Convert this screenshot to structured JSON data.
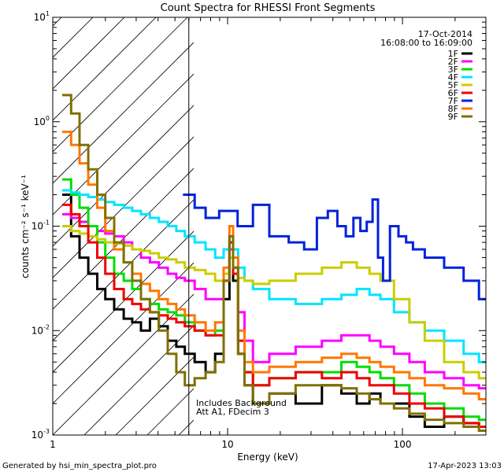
{
  "chart_data": {
    "type": "line",
    "title": "Count Spectra for RHESSI Front Segments",
    "xlabel": "Energy (keV)",
    "ylabel": "counts cm⁻² s⁻¹ keV⁻¹",
    "x_scale": "log",
    "y_scale": "log",
    "xlim": [
      1,
      300
    ],
    "ylim": [
      0.001,
      10
    ],
    "x_ticks": [
      {
        "v": 1,
        "label": "1"
      },
      {
        "v": 10,
        "label": "10"
      },
      {
        "v": 100,
        "label": "100"
      }
    ],
    "y_ticks": [
      {
        "v": 0.001,
        "base": "10",
        "exp": "-3"
      },
      {
        "v": 0.01,
        "base": "10",
        "exp": "-2"
      },
      {
        "v": 0.1,
        "base": "10",
        "exp": "-1"
      },
      {
        "v": 1,
        "base": "10",
        "exp": "0"
      },
      {
        "v": 10,
        "base": "10",
        "exp": "1"
      }
    ],
    "excluded_region_keV": [
      1,
      6
    ],
    "date": "17-Oct-2014",
    "time_range": "16:08:00 to 16:09:00",
    "notes": [
      "Includes Background",
      "Att A1, FDecim 3"
    ],
    "series": [
      {
        "name": "1F",
        "color": "#000000",
        "x": [
          1.2,
          1.35,
          1.5,
          1.7,
          1.9,
          2.1,
          2.4,
          2.7,
          3.0,
          3.4,
          3.8,
          4.3,
          4.8,
          5.4,
          6.0,
          7,
          8,
          9,
          10,
          10.5,
          11,
          12,
          13,
          15,
          20,
          30,
          40,
          50,
          60,
          70,
          80,
          100,
          120,
          150,
          200,
          250,
          300
        ],
        "y": [
          0.2,
          0.08,
          0.05,
          0.035,
          0.025,
          0.02,
          0.016,
          0.013,
          0.012,
          0.01,
          0.013,
          0.011,
          0.008,
          0.007,
          0.006,
          0.005,
          0.004,
          0.006,
          0.02,
          0.05,
          0.03,
          0.006,
          0.003,
          0.002,
          0.0025,
          0.002,
          0.003,
          0.0025,
          0.002,
          0.0025,
          0.002,
          0.002,
          0.0015,
          0.0012,
          0.0015,
          0.0013,
          0.0012
        ]
      },
      {
        "name": "2F",
        "color": "#ff00ff",
        "x": [
          1.2,
          1.35,
          1.5,
          1.7,
          1.9,
          2.1,
          2.4,
          2.7,
          3.0,
          3.4,
          3.8,
          4.3,
          4.8,
          5.4,
          6.0,
          7,
          8,
          9,
          10,
          10.5,
          11,
          12,
          13,
          15,
          20,
          30,
          40,
          50,
          60,
          70,
          80,
          100,
          120,
          150,
          200,
          250,
          300
        ],
        "y": [
          0.13,
          0.12,
          0.11,
          0.1,
          0.09,
          0.085,
          0.08,
          0.07,
          0.06,
          0.05,
          0.045,
          0.04,
          0.035,
          0.032,
          0.03,
          0.025,
          0.02,
          0.02,
          0.035,
          0.06,
          0.04,
          0.015,
          0.008,
          0.005,
          0.006,
          0.007,
          0.008,
          0.009,
          0.009,
          0.008,
          0.007,
          0.006,
          0.005,
          0.004,
          0.0035,
          0.003,
          0.0028
        ]
      },
      {
        "name": "3F",
        "color": "#00dd00",
        "x": [
          1.2,
          1.35,
          1.5,
          1.7,
          1.9,
          2.1,
          2.4,
          2.7,
          3.0,
          3.4,
          3.8,
          4.3,
          4.8,
          5.4,
          6.0,
          7,
          8,
          9,
          10,
          10.5,
          11,
          12,
          13,
          15,
          20,
          30,
          40,
          50,
          60,
          70,
          80,
          100,
          120,
          150,
          200,
          250,
          300
        ],
        "y": [
          0.28,
          0.2,
          0.15,
          0.1,
          0.07,
          0.05,
          0.035,
          0.03,
          0.025,
          0.02,
          0.018,
          0.016,
          0.015,
          0.014,
          0.012,
          0.01,
          0.009,
          0.01,
          0.03,
          0.07,
          0.04,
          0.008,
          0.004,
          0.003,
          0.0035,
          0.004,
          0.004,
          0.005,
          0.0045,
          0.004,
          0.0035,
          0.003,
          0.0025,
          0.002,
          0.0018,
          0.0015,
          0.0014
        ]
      },
      {
        "name": "4F",
        "color": "#00e5ff",
        "x": [
          1.2,
          1.35,
          1.5,
          1.7,
          1.9,
          2.1,
          2.4,
          2.7,
          3.0,
          3.4,
          3.8,
          4.3,
          4.8,
          5.4,
          6.0,
          7,
          8,
          9,
          10,
          10.5,
          11,
          12,
          13,
          15,
          20,
          30,
          40,
          50,
          60,
          70,
          80,
          100,
          120,
          150,
          200,
          250,
          300
        ],
        "y": [
          0.22,
          0.21,
          0.2,
          0.19,
          0.18,
          0.17,
          0.16,
          0.15,
          0.14,
          0.13,
          0.12,
          0.11,
          0.1,
          0.09,
          0.08,
          0.07,
          0.06,
          0.05,
          0.06,
          0.08,
          0.06,
          0.04,
          0.03,
          0.025,
          0.02,
          0.018,
          0.02,
          0.022,
          0.025,
          0.022,
          0.02,
          0.015,
          0.012,
          0.01,
          0.008,
          0.006,
          0.005
        ]
      },
      {
        "name": "5F",
        "color": "#cccc00",
        "x": [
          1.2,
          1.35,
          1.5,
          1.7,
          1.9,
          2.1,
          2.4,
          2.7,
          3.0,
          3.4,
          3.8,
          4.3,
          4.8,
          5.4,
          6.0,
          7,
          8,
          9,
          10,
          10.5,
          11,
          12,
          13,
          15,
          20,
          30,
          40,
          50,
          60,
          70,
          80,
          100,
          120,
          150,
          200,
          250,
          300
        ],
        "y": [
          0.1,
          0.09,
          0.085,
          0.08,
          0.075,
          0.07,
          0.068,
          0.065,
          0.06,
          0.058,
          0.055,
          0.05,
          0.048,
          0.045,
          0.04,
          0.038,
          0.035,
          0.03,
          0.035,
          0.05,
          0.04,
          0.032,
          0.03,
          0.028,
          0.03,
          0.035,
          0.04,
          0.045,
          0.04,
          0.035,
          0.03,
          0.02,
          0.012,
          0.008,
          0.005,
          0.004,
          0.0035
        ]
      },
      {
        "name": "6F",
        "color": "#ee0000",
        "x": [
          1.2,
          1.35,
          1.5,
          1.7,
          1.9,
          2.1,
          2.4,
          2.7,
          3.0,
          3.4,
          3.8,
          4.3,
          4.8,
          5.4,
          6.0,
          7,
          8,
          9,
          10,
          10.5,
          11,
          12,
          13,
          15,
          20,
          30,
          40,
          50,
          60,
          70,
          80,
          100,
          120,
          150,
          200,
          250,
          300
        ],
        "y": [
          0.16,
          0.13,
          0.1,
          0.07,
          0.05,
          0.035,
          0.025,
          0.02,
          0.018,
          0.016,
          0.015,
          0.014,
          0.013,
          0.012,
          0.011,
          0.01,
          0.009,
          0.009,
          0.03,
          0.07,
          0.035,
          0.008,
          0.004,
          0.003,
          0.0035,
          0.004,
          0.0035,
          0.004,
          0.0035,
          0.003,
          0.003,
          0.0025,
          0.002,
          0.0018,
          0.0015,
          0.0013,
          0.0012
        ]
      },
      {
        "name": "7F",
        "color": "#0022dd",
        "x": [
          6.0,
          7,
          8,
          10,
          13,
          15,
          20,
          25,
          30,
          35,
          40,
          45,
          50,
          55,
          60,
          65,
          70,
          75,
          80,
          90,
          100,
          110,
          120,
          150,
          200,
          250,
          300
        ],
        "y": [
          0.2,
          0.15,
          0.12,
          0.14,
          0.1,
          0.16,
          0.08,
          0.07,
          0.06,
          0.12,
          0.14,
          0.1,
          0.08,
          0.12,
          0.09,
          0.11,
          0.18,
          0.05,
          0.03,
          0.1,
          0.08,
          0.07,
          0.06,
          0.05,
          0.04,
          0.03,
          0.02
        ]
      },
      {
        "name": "8F",
        "color": "#ff7700",
        "x": [
          1.2,
          1.35,
          1.5,
          1.7,
          1.9,
          2.1,
          2.4,
          2.7,
          3.0,
          3.4,
          3.8,
          4.3,
          4.8,
          5.4,
          6.0,
          7,
          8,
          9,
          10,
          10.5,
          11,
          12,
          13,
          15,
          20,
          30,
          40,
          50,
          60,
          70,
          80,
          100,
          120,
          150,
          200,
          250,
          300
        ],
        "y": [
          0.8,
          0.6,
          0.4,
          0.25,
          0.15,
          0.09,
          0.06,
          0.045,
          0.035,
          0.028,
          0.024,
          0.02,
          0.018,
          0.016,
          0.014,
          0.012,
          0.01,
          0.012,
          0.04,
          0.1,
          0.05,
          0.01,
          0.005,
          0.004,
          0.0045,
          0.005,
          0.0055,
          0.006,
          0.0055,
          0.005,
          0.0045,
          0.004,
          0.0035,
          0.003,
          0.0028,
          0.0025,
          0.0022
        ]
      },
      {
        "name": "9F",
        "color": "#807000",
        "x": [
          1.2,
          1.35,
          1.5,
          1.7,
          1.9,
          2.1,
          2.4,
          2.7,
          3.0,
          3.4,
          3.8,
          4.3,
          4.8,
          5.4,
          6.0,
          7,
          8,
          9,
          10,
          10.5,
          11,
          12,
          13,
          15,
          20,
          30,
          40,
          50,
          60,
          70,
          80,
          100,
          120,
          150,
          200,
          250,
          300
        ],
        "y": [
          1.8,
          1.2,
          0.6,
          0.35,
          0.2,
          0.12,
          0.07,
          0.045,
          0.03,
          0.02,
          0.015,
          0.01,
          0.006,
          0.004,
          0.003,
          0.0035,
          0.004,
          0.005,
          0.03,
          0.08,
          0.04,
          0.006,
          0.003,
          0.002,
          0.0025,
          0.003,
          0.003,
          0.0028,
          0.0025,
          0.0022,
          0.002,
          0.0018,
          0.0016,
          0.0014,
          0.0013,
          0.0012,
          0.0011
        ]
      }
    ]
  },
  "footer": {
    "generator": "Generated by hsi_min_spectra_plot.pro",
    "timestamp": "17-Apr-2023 13:03"
  }
}
